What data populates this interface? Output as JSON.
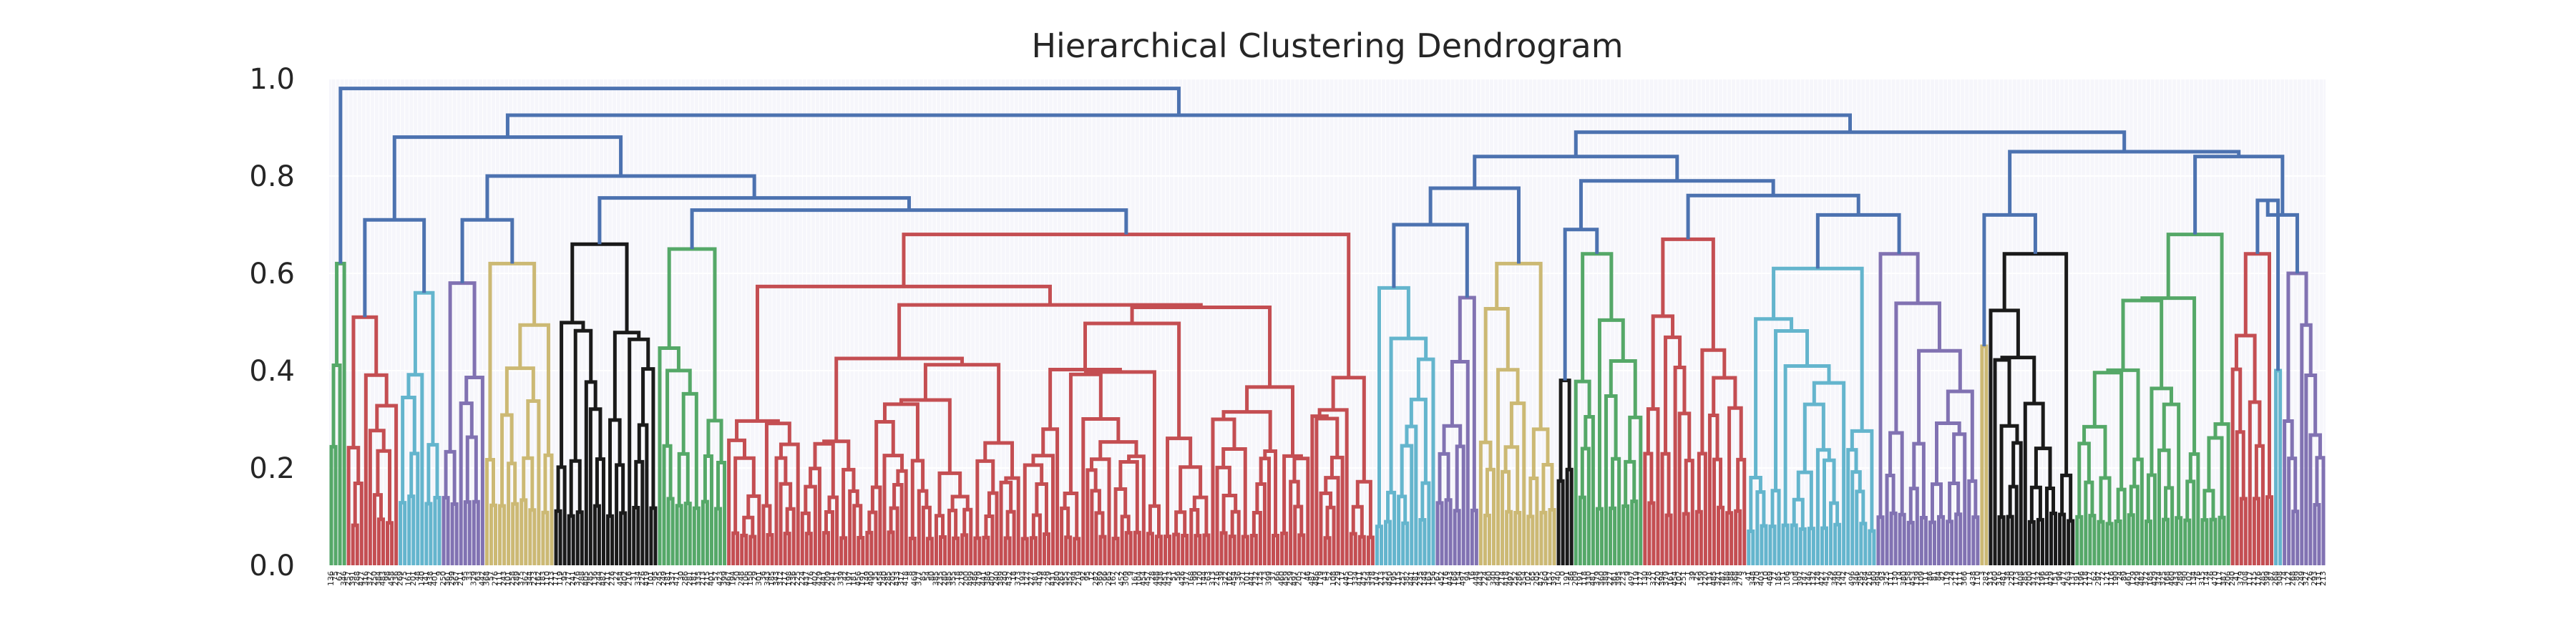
{
  "chart_data": {
    "type": "dendrogram",
    "title": "Hierarchical Clustering Dendrogram",
    "xlabel": "",
    "ylabel": "",
    "ylim": [
      0,
      1.0
    ],
    "yticks": [
      0.0,
      0.2,
      0.4,
      0.6,
      0.8,
      1.0
    ],
    "ytick_labels": [
      "0.0",
      "0.2",
      "0.4",
      "0.6",
      "0.8",
      "1.0"
    ],
    "grid": true,
    "background": "#f6f6fb",
    "colors": {
      "above_threshold": "#4c72b0",
      "green": "#55a868",
      "red": "#c44e52",
      "cyan": "#64b5cd",
      "purple": "#8172b2",
      "olive": "#ccb974",
      "black": "#1a1a1a"
    },
    "clusters": [
      {
        "id": "c1",
        "color": "green",
        "leaves": 4,
        "height": 0.62,
        "leaf_heights": [
          0.62,
          0.4,
          0.25,
          0.3
        ]
      },
      {
        "id": "c2",
        "color": "red",
        "leaves": 12,
        "height": 0.51
      },
      {
        "id": "c3",
        "color": "cyan",
        "leaves": 10,
        "height": 0.56
      },
      {
        "id": "c4",
        "color": "purple",
        "leaves": 10,
        "height": 0.58
      },
      {
        "id": "c5",
        "color": "olive",
        "leaves": 16,
        "height": 0.62
      },
      {
        "id": "c6",
        "color": "black",
        "leaves": 24,
        "height": 0.66
      },
      {
        "id": "c7",
        "color": "green",
        "leaves": 16,
        "height": 0.65
      },
      {
        "id": "c8",
        "color": "red",
        "leaves": 150,
        "height": 0.68
      },
      {
        "id": "c9",
        "color": "cyan",
        "leaves": 14,
        "height": 0.57
      },
      {
        "id": "c10",
        "color": "purple",
        "leaves": 10,
        "height": 0.55
      },
      {
        "id": "c11",
        "color": "olive",
        "leaves": 18,
        "height": 0.62
      },
      {
        "id": "c12",
        "color": "black",
        "leaves": 4,
        "height": 0.38
      },
      {
        "id": "c13",
        "color": "green",
        "leaves": 16,
        "height": 0.64
      },
      {
        "id": "c14",
        "color": "red",
        "leaves": 24,
        "height": 0.67
      },
      {
        "id": "c15",
        "color": "cyan",
        "leaves": 30,
        "height": 0.61
      },
      {
        "id": "c16",
        "color": "purple",
        "leaves": 24,
        "height": 0.64
      },
      {
        "id": "c17",
        "color": "olive",
        "leaves": 2,
        "height": 0.45
      },
      {
        "id": "c18",
        "color": "black",
        "leaves": 20,
        "height": 0.64
      },
      {
        "id": "c19",
        "color": "green",
        "leaves": 36,
        "height": 0.68
      },
      {
        "id": "c20",
        "color": "red",
        "leaves": 10,
        "height": 0.64
      },
      {
        "id": "c21",
        "color": "cyan",
        "leaves": 2,
        "height": 0.4
      },
      {
        "id": "c22",
        "color": "purple",
        "leaves": 10,
        "height": 0.6
      }
    ],
    "links": [
      {
        "id": "L1",
        "left": "c2",
        "right": "c3",
        "height": 0.71
      },
      {
        "id": "L2",
        "left": "c4",
        "right": "c5",
        "height": 0.71
      },
      {
        "id": "L3",
        "left": "c7",
        "right": "c8",
        "height": 0.73
      },
      {
        "id": "L4",
        "left": "c6",
        "right": "L3",
        "height": 0.755
      },
      {
        "id": "L5",
        "left": "L2",
        "right": "L4",
        "height": 0.8
      },
      {
        "id": "L6",
        "left": "L1",
        "right": "L5",
        "height": 0.88
      },
      {
        "id": "L7",
        "left": "c9",
        "right": "c10",
        "height": 0.7
      },
      {
        "id": "L8",
        "left": "L7",
        "right": "c11",
        "height": 0.775
      },
      {
        "id": "L9",
        "left": "c12",
        "right": "c13",
        "height": 0.69
      },
      {
        "id": "L10",
        "left": "c15",
        "right": "c16",
        "height": 0.72
      },
      {
        "id": "L11",
        "left": "c14",
        "right": "L10",
        "height": 0.76
      },
      {
        "id": "L12",
        "left": "L9",
        "right": "L11",
        "height": 0.79
      },
      {
        "id": "L13",
        "left": "L8",
        "right": "L12",
        "height": 0.84
      },
      {
        "id": "L14",
        "left": "c17",
        "right": "c18",
        "height": 0.72
      },
      {
        "id": "L15",
        "left": "c20",
        "right": "c21",
        "height": 0.75
      },
      {
        "id": "L16",
        "left": "L15",
        "right": "c22",
        "height": 0.72
      },
      {
        "id": "L17",
        "left": "c19",
        "right": "L16",
        "height": 0.84
      },
      {
        "id": "L18",
        "left": "L14",
        "right": "L17",
        "height": 0.85
      },
      {
        "id": "L19",
        "left": "L13",
        "right": "L18",
        "height": 0.89
      },
      {
        "id": "L20",
        "left": "L6",
        "right": "L19",
        "height": 0.925
      },
      {
        "id": "L21",
        "left": "c1",
        "right": "L20",
        "height": 0.98
      }
    ]
  }
}
